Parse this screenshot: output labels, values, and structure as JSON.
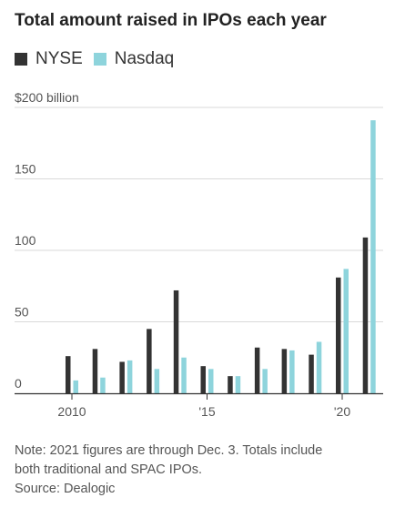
{
  "title": "Total amount raised in IPOs each year",
  "colors": {
    "nyse": "#333333",
    "nasdaq": "#8ed4dc",
    "grid": "#d9d9d9",
    "axis": "#333333"
  },
  "chart_data": {
    "type": "bar",
    "title": "Total amount raised in IPOs each year",
    "x": [
      2010,
      2011,
      2012,
      2013,
      2014,
      2015,
      2016,
      2017,
      2018,
      2019,
      2020,
      2021
    ],
    "x_tick_labels": [
      "2010",
      "'15",
      "'20"
    ],
    "y_tick_labels": [
      "$200 billion",
      "150",
      "100",
      "50",
      "0"
    ],
    "ylim": [
      0,
      200
    ],
    "grid": true,
    "legend": "top-left",
    "series": [
      {
        "name": "NYSE",
        "color": "#333333",
        "values": [
          26,
          31,
          22,
          45,
          72,
          19,
          12,
          32,
          31,
          27,
          81,
          109
        ]
      },
      {
        "name": "Nasdaq",
        "color": "#8ed4dc",
        "values": [
          9,
          11,
          23,
          17,
          25,
          17,
          12,
          17,
          30,
          36,
          87,
          191
        ]
      }
    ]
  },
  "notes": {
    "line1": "Note: 2021 figures are through Dec. 3. Totals include",
    "line2": "both traditional and SPAC IPOs.",
    "source": "Source: Dealogic"
  }
}
